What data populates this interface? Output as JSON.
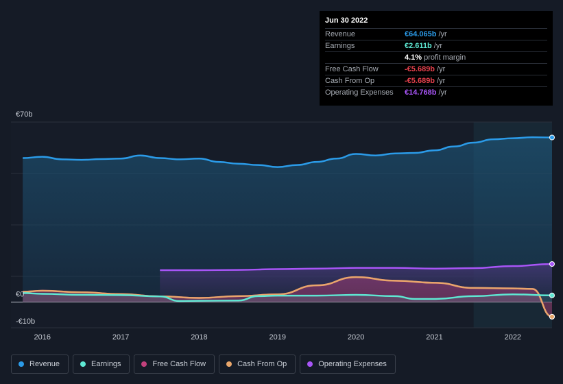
{
  "tooltip": {
    "date": "Jun 30 2022",
    "rows": [
      {
        "label": "Revenue",
        "value": "€64.065b",
        "unit": "/yr",
        "color": "#2b9be8"
      },
      {
        "label": "Earnings",
        "value": "€2.611b",
        "unit": "/yr",
        "color": "#5ee8d3"
      },
      {
        "label": "",
        "value": "4.1%",
        "unit": "profit margin",
        "color": "#ffffff"
      },
      {
        "label": "Free Cash Flow",
        "value": "-€5.689b",
        "unit": "/yr",
        "color": "#e8414d"
      },
      {
        "label": "Cash From Op",
        "value": "-€5.689b",
        "unit": "/yr",
        "color": "#e8414d"
      },
      {
        "label": "Operating Expenses",
        "value": "€14.768b",
        "unit": "/yr",
        "color": "#a855f7"
      }
    ]
  },
  "legend": [
    {
      "label": "Revenue",
      "color": "#2b9be8"
    },
    {
      "label": "Earnings",
      "color": "#5ee8d3"
    },
    {
      "label": "Free Cash Flow",
      "color": "#c2417c"
    },
    {
      "label": "Cash From Op",
      "color": "#e8a66b"
    },
    {
      "label": "Operating Expenses",
      "color": "#a855f7"
    }
  ],
  "chart_data": {
    "type": "area",
    "y_tick_labels": [
      "€70b",
      "€0",
      "-€10b"
    ],
    "ylim": [
      -10,
      70
    ],
    "x_ticks": [
      2016,
      2017,
      2018,
      2019,
      2020,
      2021,
      2022
    ],
    "xlim": [
      2015.6,
      2022.5
    ],
    "forecast_start": 2021.5,
    "series": [
      {
        "name": "Revenue",
        "color": "#2b9be8",
        "x": [
          2015.75,
          2016.0,
          2016.25,
          2016.5,
          2016.75,
          2017.0,
          2017.25,
          2017.5,
          2017.75,
          2018.0,
          2018.25,
          2018.5,
          2018.75,
          2019.0,
          2019.25,
          2019.5,
          2019.75,
          2020.0,
          2020.25,
          2020.5,
          2020.75,
          2021.0,
          2021.25,
          2021.5,
          2021.75,
          2022.0,
          2022.25,
          2022.5
        ],
        "values": [
          56,
          56.5,
          55.5,
          55.3,
          55.6,
          55.8,
          57,
          56,
          55.5,
          55.8,
          54.5,
          53.8,
          53.3,
          52.5,
          53.3,
          54.5,
          55.8,
          57.6,
          57,
          57.8,
          58,
          59,
          60.5,
          62,
          63.3,
          63.7,
          64.1,
          64
        ]
      },
      {
        "name": "Earnings",
        "color": "#5ee8d3",
        "x": [
          2015.75,
          2016.0,
          2016.5,
          2017.0,
          2017.5,
          2017.75,
          2018.0,
          2018.5,
          2018.75,
          2019.0,
          2019.5,
          2020.0,
          2020.5,
          2020.75,
          2021.0,
          2021.5,
          2022.0,
          2022.5
        ],
        "values": [
          3.5,
          3.2,
          2.8,
          2.7,
          2.2,
          0.4,
          0.5,
          0.6,
          2.3,
          2.5,
          2.5,
          2.8,
          2.3,
          1.2,
          1.2,
          2.3,
          3,
          2.6
        ]
      },
      {
        "name": "Free Cash Flow",
        "color": "#c2417c",
        "x": [
          2015.75,
          2016.0,
          2016.5,
          2017.0,
          2017.5,
          2018.0,
          2018.5,
          2019.0,
          2019.5,
          2020.0,
          2020.5,
          2021.0,
          2021.5,
          2022.0,
          2022.25,
          2022.5
        ],
        "values": [
          4,
          4.4,
          3.8,
          3.1,
          2.2,
          1.6,
          2.3,
          3,
          6.5,
          9.7,
          8.3,
          7.5,
          5.5,
          5.3,
          5.1,
          -5.7
        ]
      },
      {
        "name": "Cash From Op",
        "color": "#e8a66b",
        "x": [
          2015.75,
          2016.0,
          2016.5,
          2017.0,
          2017.5,
          2018.0,
          2018.5,
          2019.0,
          2019.5,
          2020.0,
          2020.5,
          2021.0,
          2021.5,
          2022.0,
          2022.25,
          2022.5
        ],
        "values": [
          4,
          4.4,
          3.8,
          3.1,
          2.2,
          1.6,
          2.3,
          3,
          6.5,
          9.7,
          8.3,
          7.5,
          5.5,
          5.3,
          5.1,
          -5.7
        ]
      },
      {
        "name": "Operating Expenses",
        "color": "#a855f7",
        "x": [
          2017.5,
          2018.0,
          2018.5,
          2019.0,
          2019.5,
          2020.0,
          2020.5,
          2021.0,
          2021.5,
          2022.0,
          2022.5
        ],
        "values": [
          12.4,
          12.4,
          12.5,
          12.8,
          13,
          13.3,
          13.3,
          13,
          13.2,
          14,
          14.8
        ]
      }
    ]
  }
}
